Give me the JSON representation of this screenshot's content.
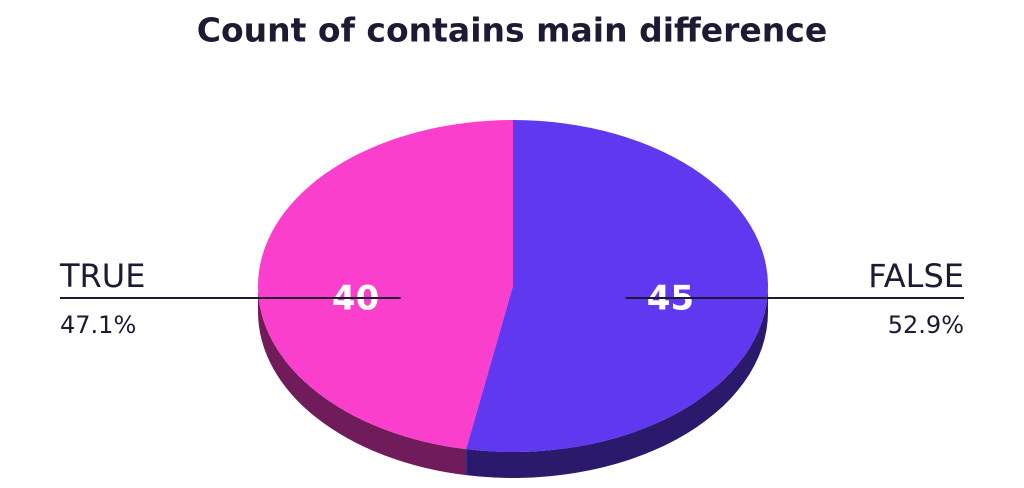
{
  "chart_data": {
    "type": "pie",
    "title": "Count of contains main difference",
    "categories": [
      "TRUE",
      "FALSE"
    ],
    "values": [
      40,
      45
    ],
    "percent_labels": [
      "47.1%",
      "52.9%"
    ],
    "colors": [
      "#f93fcb",
      "#6038f0"
    ]
  }
}
